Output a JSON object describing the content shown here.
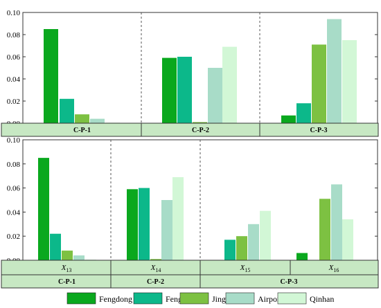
{
  "chart_data": [
    {
      "type": "bar",
      "panel": "top",
      "ylim": [
        0,
        0.1
      ],
      "yticks": [
        "0.00",
        "0.02",
        "0.04",
        "0.06",
        "0.08",
        "0.10"
      ],
      "grid": false,
      "groups": [
        "C-P-1",
        "C-P-2",
        "C-P-3"
      ],
      "series": [
        {
          "name": "Fengdong",
          "values": [
            0.085,
            0.059,
            0.007
          ]
        },
        {
          "name": "Fengxi",
          "values": [
            0.022,
            0.06,
            0.018
          ]
        },
        {
          "name": "Jinghe",
          "values": [
            0.008,
            0.001,
            0.071
          ]
        },
        {
          "name": "Airport",
          "values": [
            0.004,
            0.05,
            0.094
          ]
        },
        {
          "name": "Qinhan",
          "values": [
            0.0005,
            0.069,
            0.075
          ]
        }
      ]
    },
    {
      "type": "bar",
      "panel": "bottom",
      "ylim": [
        0,
        0.1
      ],
      "yticks": [
        "0.00",
        "0.02",
        "0.04",
        "0.06",
        "0.08",
        "0.10"
      ],
      "grid": false,
      "categories": [
        {
          "base": "X",
          "sub": "13"
        },
        {
          "base": "X",
          "sub": "14"
        },
        {
          "base": "X",
          "sub": "15"
        },
        {
          "base": "X",
          "sub": "16"
        }
      ],
      "groups": [
        "C-P-1",
        "C-P-2",
        "C-P-3"
      ],
      "series": [
        {
          "name": "Fengdong",
          "values": [
            0.085,
            0.059,
            0.0,
            0.006
          ]
        },
        {
          "name": "Fengxi",
          "values": [
            0.022,
            0.06,
            0.017,
            0.0
          ]
        },
        {
          "name": "Jinghe",
          "values": [
            0.008,
            0.001,
            0.02,
            0.051
          ]
        },
        {
          "name": "Airport",
          "values": [
            0.004,
            0.05,
            0.03,
            0.063
          ]
        },
        {
          "name": "Qinhan",
          "values": [
            0.0005,
            0.069,
            0.041,
            0.034
          ]
        }
      ]
    }
  ],
  "legend": {
    "placement": "bottom",
    "items": [
      {
        "name": "Fengdong",
        "color": "#0aa81e"
      },
      {
        "name": "Fengxi",
        "color": "#0cb88a"
      },
      {
        "name": "Jinghe",
        "color": "#7dc142"
      },
      {
        "name": "Airport",
        "color": "#a8dcc8"
      },
      {
        "name": "Qinhan",
        "color": "#d2f7d6"
      }
    ]
  },
  "colors": {
    "band": "#c7e8c3",
    "border": "#333333",
    "divider": "#555555"
  }
}
